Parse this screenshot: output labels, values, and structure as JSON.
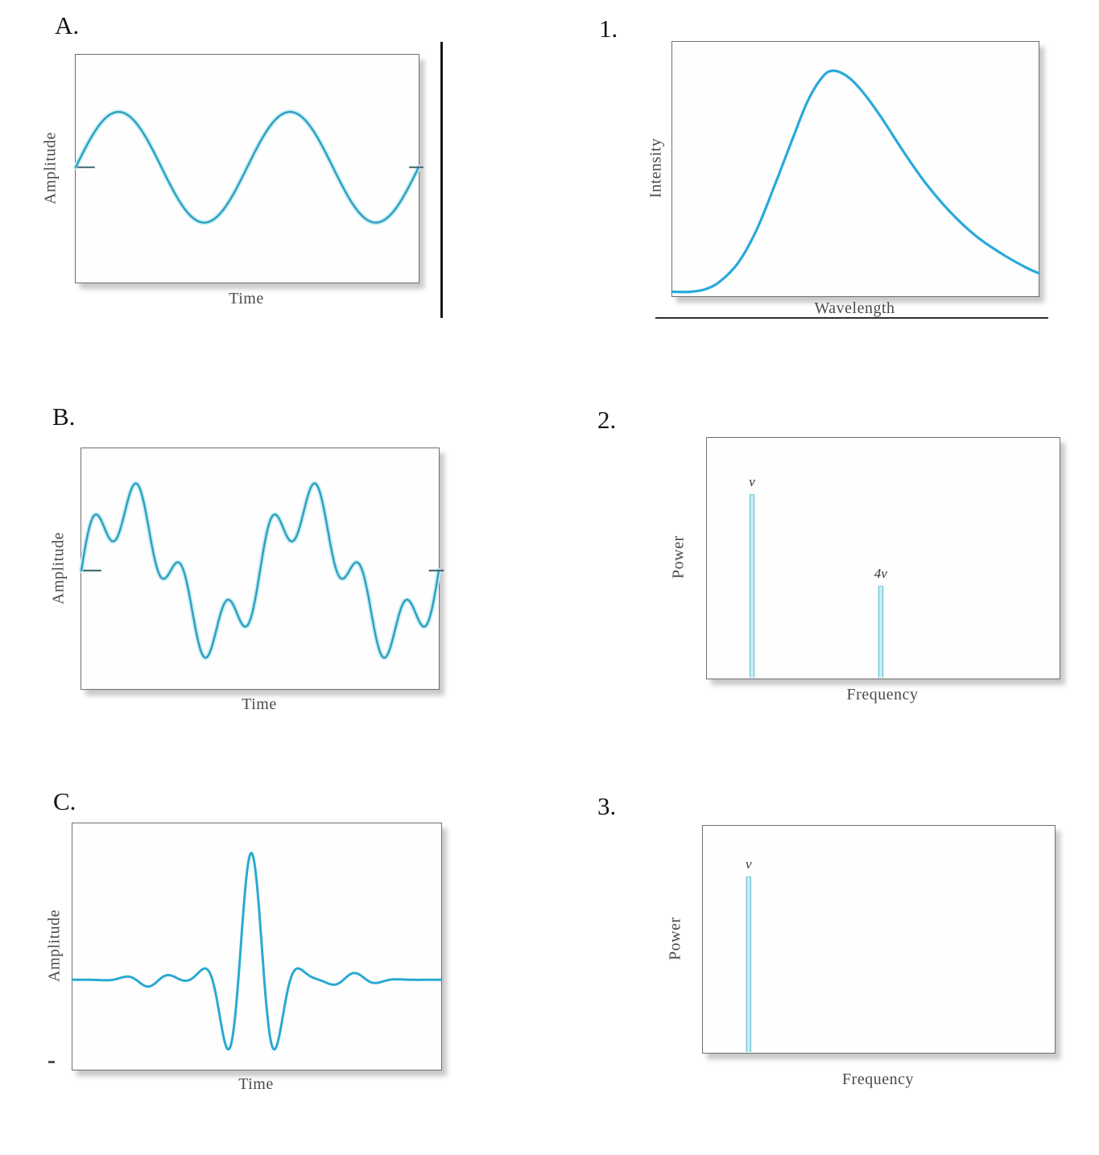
{
  "figure": {
    "left_column_panels": [
      "A.",
      "B.",
      "C."
    ],
    "right_column_panels": [
      "1.",
      "2.",
      "3."
    ],
    "curve_colors": {
      "wave_stroke": "#2d9fbe",
      "wave_glow": "#c6edf5",
      "spectrum_curve": "#29a9dc",
      "packet_curve": "#2aa9d2",
      "stem_fill": "#cdeef5",
      "stem_edge": "#7ccadb"
    },
    "box_border_color": "#6f6f6f",
    "axis_text_color": "#4a4a4a"
  },
  "chart_data": [
    {
      "panel_label": "A.",
      "type": "line",
      "kind": "harmonic_sum",
      "xlabel": "Time",
      "ylabel": "Amplitude",
      "axes": "unlabeled qualitative sketch, no ticks or numeric scale",
      "series": [
        {
          "name": "single-frequency sine wave",
          "cycles": 2,
          "harmonics": [
            {
              "freq": 1,
              "amp": 1,
              "phase": 0
            }
          ]
        }
      ],
      "midline": 0.494,
      "amplitude": 0.243,
      "midline_ticks": true,
      "stroke": "#2d9fbe",
      "glow": "#c6edf5"
    },
    {
      "panel_label": "1.",
      "type": "line",
      "kind": "smooth_points",
      "xlabel": "Wavelength",
      "ylabel": "Intensity",
      "axes": "unlabeled qualitative sketch, blackbody-like intensity distribution",
      "points": [
        [
          0.0,
          0.004
        ],
        [
          0.05,
          0.004
        ],
        [
          0.09,
          0.014
        ],
        [
          0.13,
          0.045
        ],
        [
          0.18,
          0.12
        ],
        [
          0.23,
          0.25
        ],
        [
          0.28,
          0.43
        ],
        [
          0.33,
          0.62
        ],
        [
          0.37,
          0.765
        ],
        [
          0.41,
          0.86
        ],
        [
          0.44,
          0.885
        ],
        [
          0.48,
          0.86
        ],
        [
          0.52,
          0.8
        ],
        [
          0.57,
          0.7
        ],
        [
          0.63,
          0.565
        ],
        [
          0.69,
          0.44
        ],
        [
          0.76,
          0.32
        ],
        [
          0.83,
          0.225
        ],
        [
          0.9,
          0.155
        ],
        [
          0.96,
          0.105
        ],
        [
          1.0,
          0.078
        ]
      ],
      "stroke": "#29a9dc"
    },
    {
      "panel_label": "B.",
      "type": "line",
      "kind": "harmonic_sum",
      "xlabel": "Time",
      "ylabel": "Amplitude",
      "axes": "unlabeled qualitative sketch, no ticks or numeric scale",
      "series": [
        {
          "name": "fundamental plus fourth harmonic",
          "cycles": 2,
          "harmonics": [
            {
              "freq": 1,
              "amp": 1,
              "phase": 0
            },
            {
              "freq": 4,
              "amp": 0.45,
              "phase": 0
            }
          ]
        }
      ],
      "midline": 0.508,
      "amplitude": 0.262,
      "midline_ticks": true,
      "stroke": "#2d9fbe",
      "glow": "#c6edf5"
    },
    {
      "panel_label": "2.",
      "type": "stem",
      "kind": "stems",
      "xlabel": "Frequency",
      "ylabel": "Power",
      "axes": "unlabeled qualitative power spectrum",
      "stems": [
        {
          "label": "ν",
          "x": 0.128,
          "height": 0.766
        },
        {
          "label": "4ν",
          "x": 0.493,
          "height": 0.385
        }
      ],
      "fill": "#cdeef5",
      "edge": "#7ccadb"
    },
    {
      "panel_label": "C.",
      "type": "line",
      "kind": "wave_packet",
      "xlabel": "Time",
      "ylabel": "Amplitude",
      "axes": "unlabeled qualitative sketch, localized pulse / wave packet",
      "baseline": 0.635,
      "peak_amplitude": 0.515,
      "center": 0.485,
      "carrier_cycles": 7.1,
      "envelope_sigma": 0.0854,
      "ripple": {
        "amp": 0.028,
        "freq": 8,
        "ring_center": 0.27,
        "ring_sigma": 0.08
      },
      "stroke": "#2aa9d2",
      "baseline_dash": true
    },
    {
      "panel_label": "3.",
      "type": "stem",
      "kind": "stems",
      "xlabel": "Frequency",
      "ylabel": "Power",
      "axes": "unlabeled qualitative power spectrum",
      "stems": [
        {
          "label": "ν",
          "x": 0.13,
          "height": 0.777
        }
      ],
      "fill": "#cdeef5",
      "edge": "#7ccadb"
    }
  ]
}
